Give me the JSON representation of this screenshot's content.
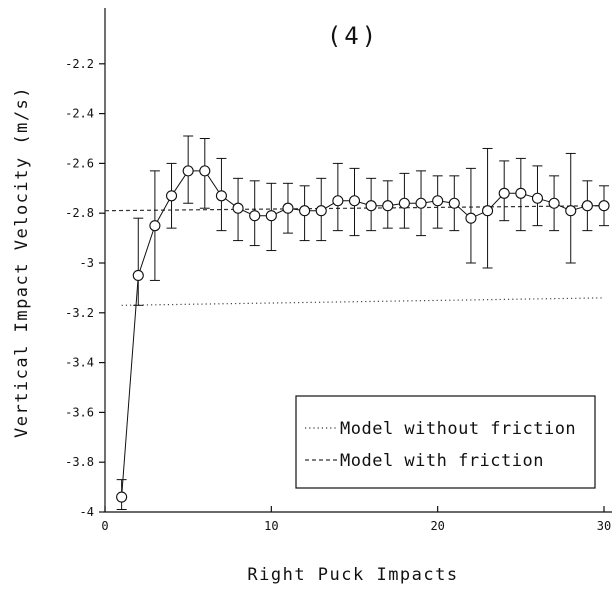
{
  "chart_data": {
    "type": "scatter",
    "title": "(4)",
    "xlabel": "Right Puck Impacts",
    "ylabel": "Vertical Impact Velocity (m/s)",
    "xlim": [
      0,
      30
    ],
    "ylim": [
      -4,
      -2.0
    ],
    "x_ticks": [
      0,
      10,
      20,
      30
    ],
    "y_ticks": [
      -4,
      -3.8,
      -3.6,
      -3.4,
      -3.2,
      -3,
      -2.8,
      -2.6,
      -2.4,
      -2.2
    ],
    "x_tick_labels": [
      "0",
      "10",
      "20",
      "30"
    ],
    "y_tick_labels": [
      "-4",
      "-3.8",
      "-3.6",
      "-3.4",
      "-3.2",
      "-3",
      "-2.8",
      "-2.6",
      "-2.4",
      "-2.2"
    ],
    "grid": false,
    "legend_position": "bottom-right",
    "series": [
      {
        "name": "",
        "style": "markers with error bars and connecting line",
        "x": [
          1,
          2,
          3,
          4,
          5,
          6,
          7,
          8,
          9,
          10,
          11,
          12,
          13,
          14,
          15,
          16,
          17,
          18,
          19,
          20,
          21,
          22,
          23,
          24,
          25,
          26,
          27,
          28,
          29,
          30
        ],
        "y": [
          -3.94,
          -3.05,
          -2.85,
          -2.73,
          -2.63,
          -2.63,
          -2.73,
          -2.78,
          -2.81,
          -2.81,
          -2.78,
          -2.79,
          -2.79,
          -2.75,
          -2.75,
          -2.77,
          -2.77,
          -2.76,
          -2.76,
          -2.75,
          -2.76,
          -2.82,
          -2.79,
          -2.72,
          -2.72,
          -2.74,
          -2.76,
          -2.79,
          -2.77,
          -2.77
        ],
        "err_low": [
          -3.99,
          -3.17,
          -3.07,
          -2.86,
          -2.76,
          -2.78,
          -2.87,
          -2.91,
          -2.93,
          -2.95,
          -2.88,
          -2.91,
          -2.91,
          -2.87,
          -2.89,
          -2.87,
          -2.86,
          -2.86,
          -2.89,
          -2.86,
          -2.87,
          -3.0,
          -3.02,
          -2.83,
          -2.87,
          -2.85,
          -2.87,
          -3.0,
          -2.87,
          -2.85
        ],
        "err_high": [
          -3.87,
          -2.82,
          -2.63,
          -2.6,
          -2.49,
          -2.5,
          -2.58,
          -2.66,
          -2.67,
          -2.68,
          -2.68,
          -2.69,
          -2.66,
          -2.6,
          -2.62,
          -2.66,
          -2.67,
          -2.64,
          -2.63,
          -2.65,
          -2.65,
          -2.62,
          -2.54,
          -2.59,
          -2.58,
          -2.61,
          -2.65,
          -2.56,
          -2.67,
          -2.69
        ]
      },
      {
        "name": "Model without friction",
        "style": "dotted",
        "x": [
          1,
          30
        ],
        "y": [
          -3.17,
          -3.14
        ]
      },
      {
        "name": "Model with friction",
        "style": "dashed",
        "x": [
          0,
          30
        ],
        "y": [
          -2.79,
          -2.77
        ]
      }
    ]
  }
}
